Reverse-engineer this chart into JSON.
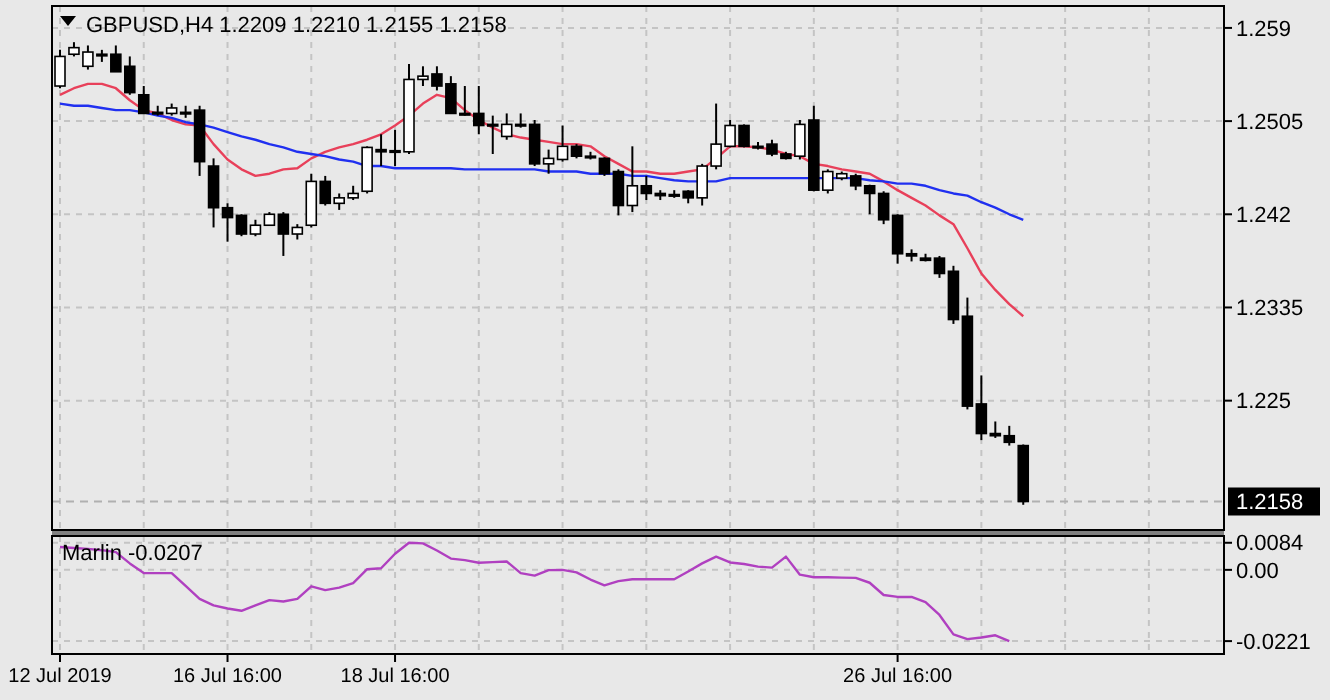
{
  "chart_data": [
    {
      "type": "candlestick",
      "title": "GBPUSD,H4 1.2209 1.2210 1.2155 1.2158",
      "categories": [
        null,
        null,
        null,
        null,
        null,
        null,
        null,
        null,
        null,
        null,
        null,
        null,
        null,
        null,
        null,
        null,
        null,
        null,
        null,
        null,
        null,
        null,
        null,
        null,
        null,
        null,
        null,
        null,
        null,
        null,
        null,
        null,
        null,
        null,
        null,
        null,
        null,
        null,
        null,
        null,
        null,
        null,
        null,
        null,
        null,
        null,
        null,
        null,
        null,
        null,
        null,
        null,
        null,
        null,
        null,
        null,
        null,
        null,
        null,
        null,
        null,
        null,
        null,
        null,
        null,
        null,
        null,
        null,
        null,
        null
      ],
      "ohlc": [
        [
          1.2537,
          1.257,
          1.2535,
          1.2564
        ],
        [
          1.2566,
          1.2577,
          1.2564,
          1.2572
        ],
        [
          1.2555,
          1.2574,
          1.2552,
          1.2568
        ],
        [
          1.2566,
          1.257,
          1.2559,
          1.2565
        ],
        [
          1.2566,
          1.2574,
          1.255,
          1.255
        ],
        [
          1.2555,
          1.2564,
          1.2529,
          1.2531
        ],
        [
          1.2529,
          1.2537,
          1.2512,
          1.2512
        ],
        [
          1.2513,
          1.2519,
          1.251,
          1.2512
        ],
        [
          1.2512,
          1.2521,
          1.251,
          1.2517
        ],
        [
          1.2513,
          1.2519,
          1.2508,
          1.2513
        ],
        [
          1.2515,
          1.2519,
          1.2455,
          1.2468
        ],
        [
          1.2464,
          1.2471,
          1.2408,
          1.2426
        ],
        [
          1.2426,
          1.243,
          1.2395,
          1.2417
        ],
        [
          1.2419,
          1.242,
          1.24,
          1.2402
        ],
        [
          1.2402,
          1.2415,
          1.24,
          1.241
        ],
        [
          1.241,
          1.2422,
          1.241,
          1.242
        ],
        [
          1.242,
          1.2422,
          1.2382,
          1.2402
        ],
        [
          1.2402,
          1.2411,
          1.2397,
          1.2408
        ],
        [
          1.241,
          1.2457,
          1.2408,
          1.245
        ],
        [
          1.245,
          1.2455,
          1.2428,
          1.243
        ],
        [
          1.243,
          1.2439,
          1.2424,
          1.2435
        ],
        [
          1.2435,
          1.2446,
          1.2433,
          1.2439
        ],
        [
          1.2441,
          1.2482,
          1.2439,
          1.2481
        ],
        [
          1.2479,
          1.2493,
          1.2464,
          1.2477
        ],
        [
          1.2477,
          1.2497,
          1.2464,
          1.2478
        ],
        [
          1.2477,
          1.2557,
          1.2475,
          1.2543
        ],
        [
          1.2543,
          1.2555,
          1.2537,
          1.2546
        ],
        [
          1.2548,
          1.2555,
          1.2533,
          1.2537
        ],
        [
          1.2539,
          1.2546,
          1.2512,
          1.2512
        ],
        [
          1.2512,
          1.2537,
          1.251,
          1.2511
        ],
        [
          1.2512,
          1.2537,
          1.2493,
          1.2501
        ],
        [
          1.2501,
          1.251,
          1.2475,
          1.2502
        ],
        [
          1.2491,
          1.2512,
          1.2488,
          1.2502
        ],
        [
          1.2502,
          1.2512,
          1.2499,
          1.2501
        ],
        [
          1.2502,
          1.2506,
          1.2464,
          1.2466
        ],
        [
          1.2466,
          1.2479,
          1.2457,
          1.2471
        ],
        [
          1.247,
          1.2501,
          1.2468,
          1.2482
        ],
        [
          1.2482,
          1.2484,
          1.2471,
          1.2473
        ],
        [
          1.2473,
          1.2477,
          1.247,
          1.2472
        ],
        [
          1.2471,
          1.2472,
          1.2455,
          1.2457
        ],
        [
          1.2459,
          1.2461,
          1.2419,
          1.2428
        ],
        [
          1.2428,
          1.2482,
          1.2422,
          1.2446
        ],
        [
          1.2446,
          1.2455,
          1.2433,
          1.2439
        ],
        [
          1.2439,
          1.2442,
          1.2433,
          1.2437
        ],
        [
          1.2437,
          1.2442,
          1.2435,
          1.2438
        ],
        [
          1.2441,
          1.2442,
          1.243,
          1.2435
        ],
        [
          1.2435,
          1.2466,
          1.2428,
          1.2464
        ],
        [
          1.2464,
          1.2521,
          1.2461,
          1.2484
        ],
        [
          1.2482,
          1.2506,
          1.2481,
          1.2501
        ],
        [
          1.2501,
          1.2502,
          1.2481,
          1.2482
        ],
        [
          1.2482,
          1.2486,
          1.2479,
          1.2481
        ],
        [
          1.2484,
          1.2488,
          1.2473,
          1.2475
        ],
        [
          1.2475,
          1.2477,
          1.247,
          1.2471
        ],
        [
          1.2473,
          1.2506,
          1.247,
          1.2502
        ],
        [
          1.2506,
          1.2519,
          1.2441,
          1.2442
        ],
        [
          1.2442,
          1.2461,
          1.2439,
          1.2459
        ],
        [
          1.2453,
          1.2459,
          1.2451,
          1.2457
        ],
        [
          1.2455,
          1.2457,
          1.2442,
          1.2446
        ],
        [
          1.2446,
          1.2447,
          1.242,
          1.2439
        ],
        [
          1.2439,
          1.2441,
          1.2411,
          1.2415
        ],
        [
          1.2419,
          1.242,
          1.2375,
          1.2384
        ],
        [
          1.2384,
          1.2388,
          1.2377,
          1.2382
        ],
        [
          1.238,
          1.2384,
          1.2377,
          1.2378
        ],
        [
          1.238,
          1.2382,
          1.2362,
          1.2366
        ],
        [
          1.2368,
          1.2373,
          1.232,
          1.2324
        ],
        [
          1.2327,
          1.2344,
          1.2242,
          1.2245
        ],
        [
          1.2247,
          1.2273,
          1.2214,
          1.222
        ],
        [
          1.222,
          1.2231,
          1.2216,
          1.2218
        ],
        [
          1.2218,
          1.2227,
          1.2209,
          1.2212
        ],
        [
          1.2209,
          1.221,
          1.2155,
          1.2158
        ]
      ],
      "series": [
        {
          "type": "line",
          "color": "#e8405a",
          "values": [
            1.2529,
            1.2535,
            1.2539,
            1.2539,
            1.2535,
            1.2524,
            1.2515,
            1.2512,
            1.2506,
            1.2502,
            1.2501,
            1.2484,
            1.247,
            1.2461,
            1.2455,
            1.2457,
            1.2461,
            1.2462,
            1.2471,
            1.2477,
            1.2481,
            1.2484,
            1.2488,
            1.2493,
            1.2501,
            1.251,
            1.2521,
            1.2529,
            1.2526,
            1.2515,
            1.2506,
            1.2499,
            1.2493,
            1.249,
            1.2488,
            1.2486,
            1.2484,
            1.2484,
            1.2482,
            1.2473,
            1.2466,
            1.2459,
            1.2459,
            1.2457,
            1.2457,
            1.2459,
            1.2461,
            1.2471,
            1.2482,
            1.2482,
            1.2481,
            1.2479,
            1.2475,
            1.2473,
            1.2466,
            1.2464,
            1.2461,
            1.2459,
            1.2457,
            1.245,
            1.2442,
            1.2435,
            1.2428,
            1.2419,
            1.2411,
            1.2389,
            1.2366,
            1.2351,
            1.2338,
            1.2327
          ]
        },
        {
          "type": "line",
          "color": "#2030f0",
          "values": [
            1.2521,
            1.2519,
            1.2519,
            1.2517,
            1.2515,
            1.2515,
            1.2513,
            1.251,
            1.2508,
            1.2504,
            1.2502,
            1.2499,
            1.2495,
            1.2491,
            1.2488,
            1.2484,
            1.2481,
            1.2477,
            1.2475,
            1.2473,
            1.247,
            1.2468,
            1.2464,
            1.2464,
            1.2462,
            1.2462,
            1.2462,
            1.2462,
            1.2462,
            1.2461,
            1.2461,
            1.2461,
            1.2461,
            1.2461,
            1.2461,
            1.2459,
            1.2459,
            1.2459,
            1.2457,
            1.2457,
            1.2457,
            1.2455,
            1.2455,
            1.2453,
            1.2451,
            1.245,
            1.245,
            1.245,
            1.2453,
            1.2453,
            1.2453,
            1.2453,
            1.2453,
            1.2453,
            1.2453,
            1.2453,
            1.2453,
            1.2453,
            1.2451,
            1.245,
            1.2448,
            1.2448,
            1.2446,
            1.2442,
            1.2439,
            1.2437,
            1.2431,
            1.2426,
            1.242,
            1.2415
          ]
        }
      ],
      "ylim": [
        1.2132,
        1.261
      ],
      "yticks": [
        1.259,
        1.2505,
        1.242,
        1.2335,
        1.225
      ],
      "ref_lines": [
        {
          "axis": "y",
          "value": 1.2158,
          "label": "1.2158",
          "line_style": "dashed"
        }
      ],
      "grid": true,
      "tick_labels": "y"
    },
    {
      "type": "line",
      "title": "Marlin -0.0207",
      "categories": [
        "12 Jul 2019",
        null,
        null,
        null,
        null,
        null,
        null,
        null,
        null,
        null,
        null,
        null,
        "16 Jul 16:00",
        null,
        null,
        null,
        null,
        null,
        null,
        null,
        null,
        null,
        null,
        null,
        "18 Jul 16:00",
        null,
        null,
        null,
        null,
        null,
        null,
        null,
        null,
        null,
        null,
        null,
        null,
        null,
        null,
        null,
        null,
        null,
        null,
        null,
        null,
        null,
        null,
        null,
        null,
        null,
        null,
        null,
        null,
        null,
        null,
        null,
        null,
        null,
        null,
        null,
        "26 Jul 16:00",
        null,
        null,
        null,
        null,
        null,
        null,
        null,
        null,
        null
      ],
      "series": [
        {
          "color": "#b040c0",
          "values": [
            0.0071,
            0.0068,
            0.0065,
            0.0061,
            0.0055,
            0.002,
            -0.001,
            -0.001,
            -0.001,
            -0.005,
            -0.009,
            -0.011,
            -0.012,
            -0.0127,
            -0.011,
            -0.0094,
            -0.0098,
            -0.009,
            -0.0051,
            -0.0063,
            -0.0055,
            -0.0041,
            0.0002,
            0.0005,
            0.005,
            0.0084,
            0.0082,
            0.006,
            0.0035,
            0.003,
            0.0022,
            0.0024,
            0.0026,
            -0.001,
            -0.0018,
            -0.0001,
            0.0,
            -0.0008,
            -0.003,
            -0.0048,
            -0.0035,
            -0.0029,
            -0.0029,
            -0.0029,
            -0.0029,
            -0.0005,
            0.002,
            0.0041,
            0.0023,
            0.0018,
            0.001,
            0.0007,
            0.0041,
            -0.0015,
            -0.0023,
            -0.0023,
            -0.0024,
            -0.0025,
            -0.004,
            -0.0078,
            -0.0084,
            -0.0084,
            -0.01,
            -0.014,
            -0.02,
            -0.0215,
            -0.021,
            -0.0203,
            -0.0221,
            null
          ]
        }
      ],
      "ylim": [
        -0.0261,
        0.0105
      ],
      "yticks": [
        0.0084,
        {
          "value": 0,
          "label": "0.00"
        },
        -0.0221
      ],
      "grid": true
    }
  ]
}
